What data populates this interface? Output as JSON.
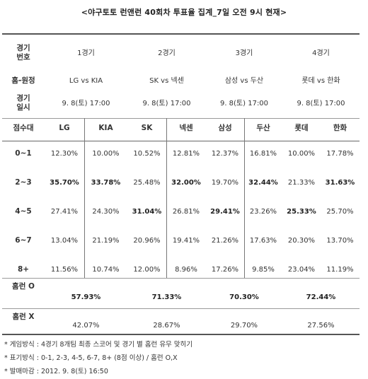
{
  "title": "<야구토토 런앤런 40회차 투표율 집계_7일 오전 9시 현재>",
  "row_labels": {
    "game_no": [
      "경기",
      "번호"
    ],
    "home_away": "홈-원정",
    "game_time": [
      "경기",
      "일시"
    ],
    "score_range": "점수대",
    "hr_o": "홈런 O",
    "hr_x": "홈런 X"
  },
  "games": [
    {
      "no": "1경기",
      "matchup": "LG vs KIA",
      "datetime": "9. 8(토) 17:00",
      "home": "LG",
      "away": "KIA"
    },
    {
      "no": "2경기",
      "matchup": "SK vs 넥센",
      "datetime": "9. 8(토) 17:00",
      "home": "SK",
      "away": "넥센"
    },
    {
      "no": "3경기",
      "matchup": "삼성 vs 두산",
      "datetime": "9. 8(토) 17:00",
      "home": "삼성",
      "away": "두산"
    },
    {
      "no": "4경기",
      "matchup": "롯데 vs 한화",
      "datetime": "9. 8(토) 17:00",
      "home": "롯데",
      "away": "한화"
    }
  ],
  "score_rows": [
    {
      "range": "0~1",
      "values": [
        "12.30%",
        "10.00%",
        "10.52%",
        "12.81%",
        "12.37%",
        "16.81%",
        "10.00%",
        "17.78%"
      ],
      "bold": [
        false,
        false,
        false,
        false,
        false,
        false,
        false,
        false
      ]
    },
    {
      "range": "2~3",
      "values": [
        "35.70%",
        "33.78%",
        "25.48%",
        "32.00%",
        "19.70%",
        "32.44%",
        "21.33%",
        "31.63%"
      ],
      "bold": [
        true,
        true,
        false,
        true,
        false,
        true,
        false,
        true
      ]
    },
    {
      "range": "4~5",
      "values": [
        "27.41%",
        "24.30%",
        "31.04%",
        "26.81%",
        "29.41%",
        "23.26%",
        "25.33%",
        "25.70%"
      ],
      "bold": [
        false,
        false,
        true,
        false,
        true,
        false,
        true,
        false
      ]
    },
    {
      "range": "6~7",
      "values": [
        "13.04%",
        "21.19%",
        "20.96%",
        "19.41%",
        "21.26%",
        "17.63%",
        "20.30%",
        "13.70%"
      ],
      "bold": [
        false,
        false,
        false,
        false,
        false,
        false,
        false,
        false
      ]
    },
    {
      "range": "8+",
      "values": [
        "11.56%",
        "10.74%",
        "12.00%",
        "8.96%",
        "17.26%",
        "9.85%",
        "23.04%",
        "11.19%"
      ],
      "bold": [
        false,
        false,
        false,
        false,
        false,
        false,
        false,
        false
      ]
    }
  ],
  "homerun_o": [
    "57.93%",
    "71.33%",
    "70.30%",
    "72.44%"
  ],
  "homerun_x": [
    "42.07%",
    "28.67%",
    "29.70%",
    "27.56%"
  ],
  "notes": [
    "* 게임방식 : 4경기 8개팀 최종 스코어 및 경기 별 홈런 유무 맞히기",
    "* 표기방식 : 0-1, 2-3, 4-5, 6-7, 8+ (8점 이상) / 홈런 O,X",
    "* 발매마감 : 2012. 9. 8(토) 16:50"
  ]
}
